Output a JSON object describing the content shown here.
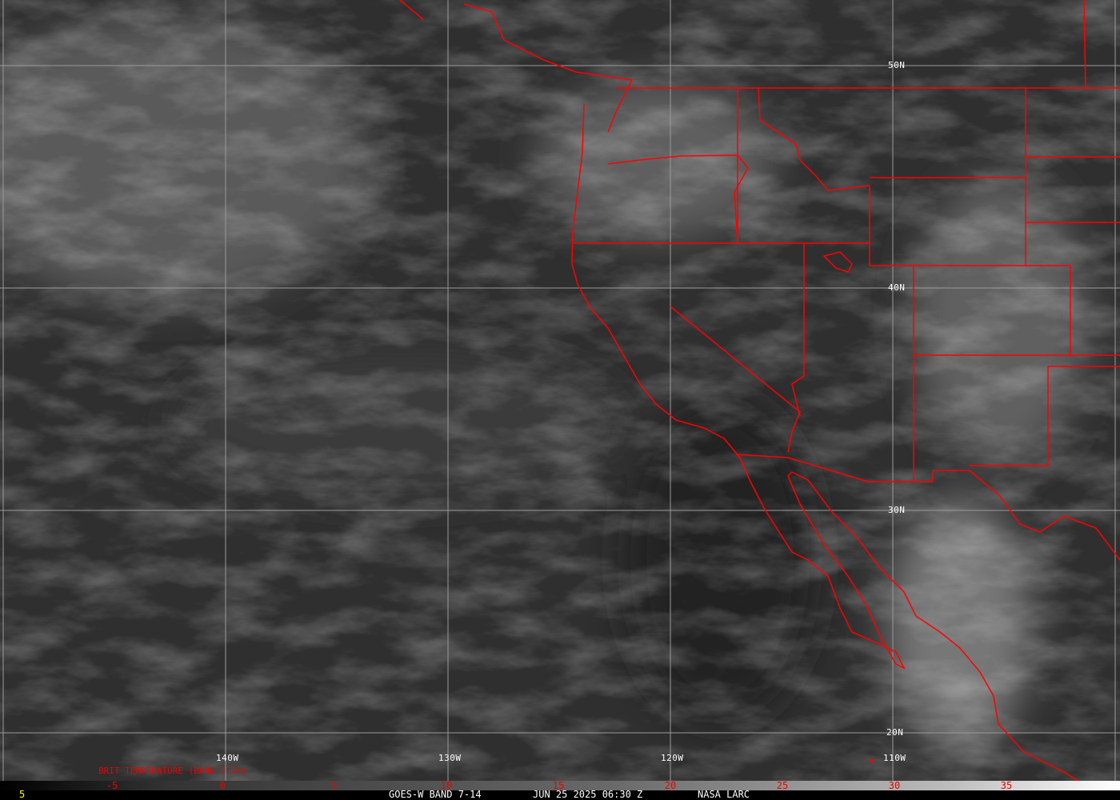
{
  "map": {
    "lat_labels": [
      "50N",
      "40N",
      "30N",
      "20N"
    ],
    "lon_labels": [
      "140W",
      "130W",
      "120W",
      "110W"
    ],
    "border_color": "#ff0000",
    "grid_color": "#9a9a9a"
  },
  "colorbar": {
    "title": "BRIT TEMPERATURE (BAND 7-14)",
    "ticks": [
      "-5",
      "0",
      "5",
      "10",
      "15",
      "20",
      "25",
      "30",
      "35"
    ],
    "tick_color": "#e00000"
  },
  "footer": {
    "frame_number": "5",
    "product": "GOES-W BAND 7-14",
    "datetime": "JUN 25 2025 06:30 Z",
    "source": "NASA LARC"
  }
}
